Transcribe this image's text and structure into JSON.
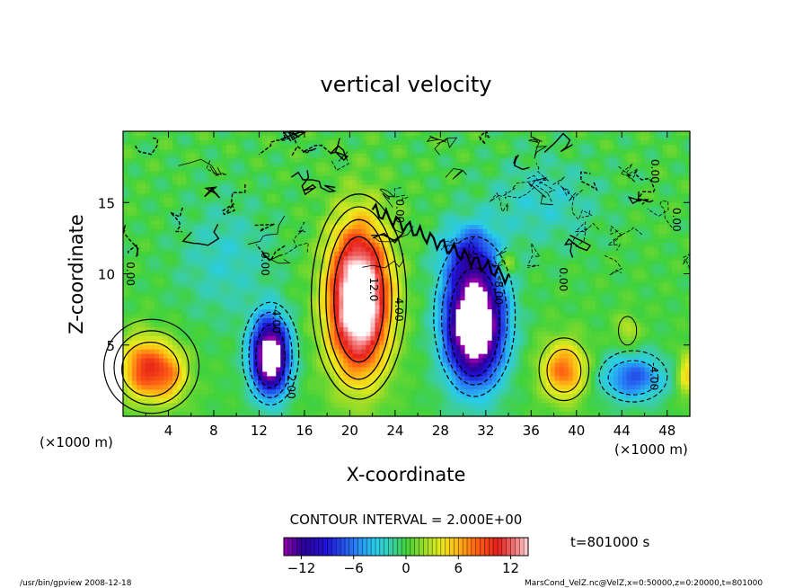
{
  "chart_data": {
    "type": "heatmap",
    "title": "vertical velocity",
    "xlabel": "X-coordinate",
    "ylabel": "Z-coordinate",
    "x_unit_left": "(×1000 m)",
    "x_unit_right": "(×1000 m)",
    "xlim": [
      0,
      50
    ],
    "ylim": [
      0,
      20
    ],
    "x_ticks": [
      4,
      8,
      12,
      16,
      20,
      24,
      28,
      32,
      36,
      40,
      44,
      48
    ],
    "y_ticks": [
      5,
      10,
      15
    ],
    "contour_interval_text": "CONTOUR INTERVAL = 2.000E+00",
    "colorbar": {
      "min": -14,
      "max": 14,
      "ticks": [
        -12,
        -6,
        0,
        6,
        12
      ]
    },
    "contour_labels": [
      {
        "text": "0.00",
        "x": 0.3,
        "y": 10.0
      },
      {
        "text": "0.00",
        "x": 12.2,
        "y": 10.7
      },
      {
        "text": "-4.00",
        "x": 13.2,
        "y": 6.8
      },
      {
        "text": "-2.00",
        "x": 14.5,
        "y": 2.2
      },
      {
        "text": "12.0",
        "x": 21.8,
        "y": 8.9
      },
      {
        "text": "4.00",
        "x": 24.0,
        "y": 7.5
      },
      {
        "text": "0.00",
        "x": 24.1,
        "y": 14.4
      },
      {
        "text": "-8.00",
        "x": 32.8,
        "y": 8.8
      },
      {
        "text": "0.00",
        "x": 38.5,
        "y": 9.6
      },
      {
        "text": "0.00",
        "x": 46.6,
        "y": 17.2
      },
      {
        "text": "-4.00",
        "x": 46.5,
        "y": 2.8
      },
      {
        "text": "0.00",
        "x": 48.5,
        "y": 13.8
      }
    ],
    "features": [
      {
        "name": "updraft-main",
        "cx": 20.8,
        "cz": 8.2,
        "peak": 15
      },
      {
        "name": "downdraft-right",
        "cx": 30.9,
        "cz": 6.4,
        "peak": -15
      },
      {
        "name": "downdraft-left",
        "cx": 13.0,
        "cz": 4.2,
        "peak": -15
      },
      {
        "name": "updraft-left",
        "cx": 2.5,
        "cz": 3.3,
        "peak": 9
      },
      {
        "name": "updraft-40",
        "cx": 38.9,
        "cz": 3.2,
        "peak": 8
      },
      {
        "name": "downdraft-44",
        "cx": 45.0,
        "cz": 2.7,
        "peak": -7
      }
    ]
  },
  "time_label": "t=801000 s",
  "footer_left": "/usr/bin/gpview  2008-12-18",
  "footer_right": "MarsCond_VelZ.nc@VelZ,x=0:50000,z=0:20000,t=801000"
}
